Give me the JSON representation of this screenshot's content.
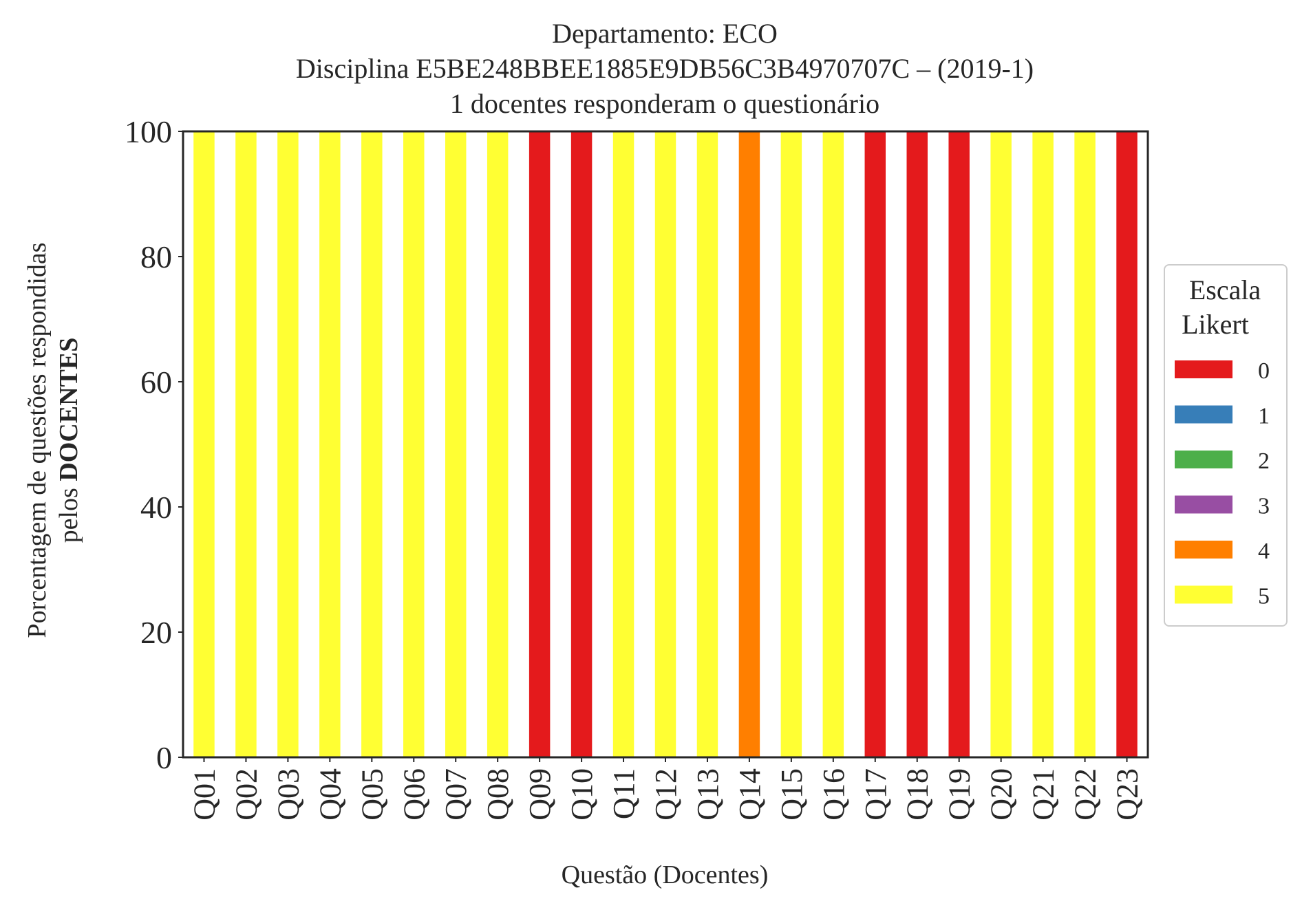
{
  "chart_data": {
    "type": "bar",
    "stacked": true,
    "title_lines": [
      "Departamento: ECO",
      "Disciplina E5BE248BBEE1885E9DB56C3B4970707C – (2019-1)",
      "1 docentes responderam o questionário"
    ],
    "xlabel": "Questão (Docentes)",
    "ylabel_line1": "Porcentagem de questões respondidas",
    "ylabel_line2_prefix": "pelos ",
    "ylabel_line2_bold": "DOCENTES",
    "ylim": [
      0,
      100
    ],
    "yticks": [
      "0",
      "20",
      "40",
      "60",
      "80",
      "100"
    ],
    "grid": false,
    "legend_position": "center-right",
    "legend_title_lines": [
      "Escala",
      "Likert"
    ],
    "categories": [
      "Q01",
      "Q02",
      "Q03",
      "Q04",
      "Q05",
      "Q06",
      "Q07",
      "Q08",
      "Q09",
      "Q10",
      "Q11",
      "Q12",
      "Q13",
      "Q14",
      "Q15",
      "Q16",
      "Q17",
      "Q18",
      "Q19",
      "Q20",
      "Q21",
      "Q22",
      "Q23"
    ],
    "series": [
      {
        "name": "0",
        "color": "#e41a1c",
        "values": [
          0,
          0,
          0,
          0,
          0,
          0,
          0,
          0,
          100,
          100,
          0,
          0,
          0,
          0,
          0,
          0,
          100,
          100,
          100,
          0,
          0,
          0,
          100
        ]
      },
      {
        "name": "1",
        "color": "#377eb8",
        "values": [
          0,
          0,
          0,
          0,
          0,
          0,
          0,
          0,
          0,
          0,
          0,
          0,
          0,
          0,
          0,
          0,
          0,
          0,
          0,
          0,
          0,
          0,
          0
        ]
      },
      {
        "name": "2",
        "color": "#4daf4a",
        "values": [
          0,
          0,
          0,
          0,
          0,
          0,
          0,
          0,
          0,
          0,
          0,
          0,
          0,
          0,
          0,
          0,
          0,
          0,
          0,
          0,
          0,
          0,
          0
        ]
      },
      {
        "name": "3",
        "color": "#984ea3",
        "values": [
          0,
          0,
          0,
          0,
          0,
          0,
          0,
          0,
          0,
          0,
          0,
          0,
          0,
          0,
          0,
          0,
          0,
          0,
          0,
          0,
          0,
          0,
          0
        ]
      },
      {
        "name": "4",
        "color": "#ff7f00",
        "values": [
          0,
          0,
          0,
          0,
          0,
          0,
          0,
          0,
          0,
          0,
          0,
          0,
          0,
          100,
          0,
          0,
          0,
          0,
          0,
          0,
          0,
          0,
          0
        ]
      },
      {
        "name": "5",
        "color": "#ffff33",
        "values": [
          100,
          100,
          100,
          100,
          100,
          100,
          100,
          100,
          0,
          0,
          100,
          100,
          100,
          0,
          100,
          100,
          0,
          0,
          0,
          100,
          100,
          100,
          0
        ]
      }
    ]
  }
}
